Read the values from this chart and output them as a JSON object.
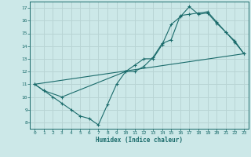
{
  "xlabel": "Humidex (Indice chaleur)",
  "bg_color": "#cce8e8",
  "grid_color": "#b8d4d4",
  "line_color": "#1a6b6b",
  "xlim": [
    -0.5,
    23.5
  ],
  "ylim": [
    7.5,
    17.5
  ],
  "xticks": [
    0,
    1,
    2,
    3,
    4,
    5,
    6,
    7,
    8,
    9,
    10,
    11,
    12,
    13,
    14,
    15,
    16,
    17,
    18,
    19,
    20,
    21,
    22,
    23
  ],
  "yticks": [
    8,
    9,
    10,
    11,
    12,
    13,
    14,
    15,
    16,
    17
  ],
  "line1_x": [
    0,
    1,
    2,
    3,
    4,
    5,
    6,
    7,
    8,
    9,
    10,
    11,
    12,
    13,
    14,
    15,
    16,
    17,
    18,
    19,
    20,
    21,
    22,
    23
  ],
  "line1_y": [
    11.0,
    10.5,
    10.0,
    9.5,
    9.0,
    8.5,
    8.3,
    7.8,
    9.4,
    11.0,
    12.0,
    12.5,
    13.0,
    13.0,
    14.1,
    15.7,
    16.3,
    17.1,
    16.5,
    16.6,
    15.8,
    15.1,
    14.3,
    13.4
  ],
  "line2_x": [
    0,
    1,
    3,
    10,
    11,
    12,
    13,
    14,
    15,
    16,
    17,
    18,
    19,
    20,
    21,
    22,
    23
  ],
  "line2_y": [
    11.0,
    10.5,
    10.0,
    12.0,
    12.0,
    12.4,
    13.1,
    14.2,
    14.5,
    16.4,
    16.5,
    16.6,
    16.7,
    15.9,
    15.1,
    14.4,
    13.4
  ],
  "line3_x": [
    0,
    23
  ],
  "line3_y": [
    11.0,
    13.4
  ]
}
